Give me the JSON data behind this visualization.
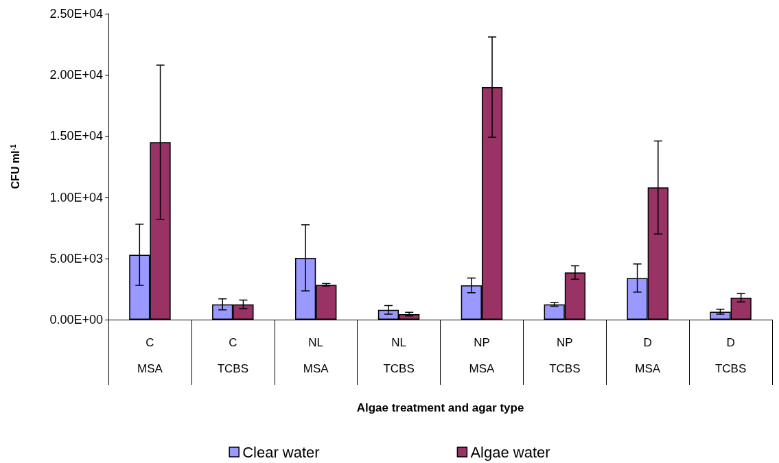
{
  "chart_data": {
    "type": "bar",
    "xlabel": "Algae treatment and agar type",
    "ylabel": "CFU ml$^{-1}$",
    "categories": [
      "C\n\nMSA",
      "C\n\nTCBS",
      "NL\n\nMSA",
      "NL\n\nTCBS",
      "NP\n\nMSA",
      "NP\n\nTCBS",
      "D\n\nMSA",
      "D\n\nTCBS"
    ],
    "series": [
      {
        "name": "Clear water",
        "color": "#9999ff",
        "values": [
          5300,
          1250,
          5050,
          800,
          2800,
          1250,
          3400,
          650
        ],
        "errors": [
          2500,
          450,
          2700,
          350,
          600,
          150,
          1150,
          200
        ]
      },
      {
        "name": "Algae water",
        "color": "#993366",
        "values": [
          14500,
          1250,
          2850,
          450,
          19000,
          3850,
          10800,
          1800
        ],
        "errors": [
          6300,
          350,
          100,
          150,
          4100,
          550,
          3800,
          350
        ]
      }
    ],
    "ylim": [
      0,
      25000
    ],
    "yticks": [
      {
        "value": 0,
        "label": "0.00E+00"
      },
      {
        "value": 5000,
        "label": "5.00E+03"
      },
      {
        "value": 10000,
        "label": "1.00E+04"
      },
      {
        "value": 15000,
        "label": "1.50E+04"
      },
      {
        "value": 20000,
        "label": "2.00E+04"
      },
      {
        "value": 25000,
        "label": "2.50E+04"
      }
    ],
    "grid": false,
    "legend": "bottom"
  }
}
